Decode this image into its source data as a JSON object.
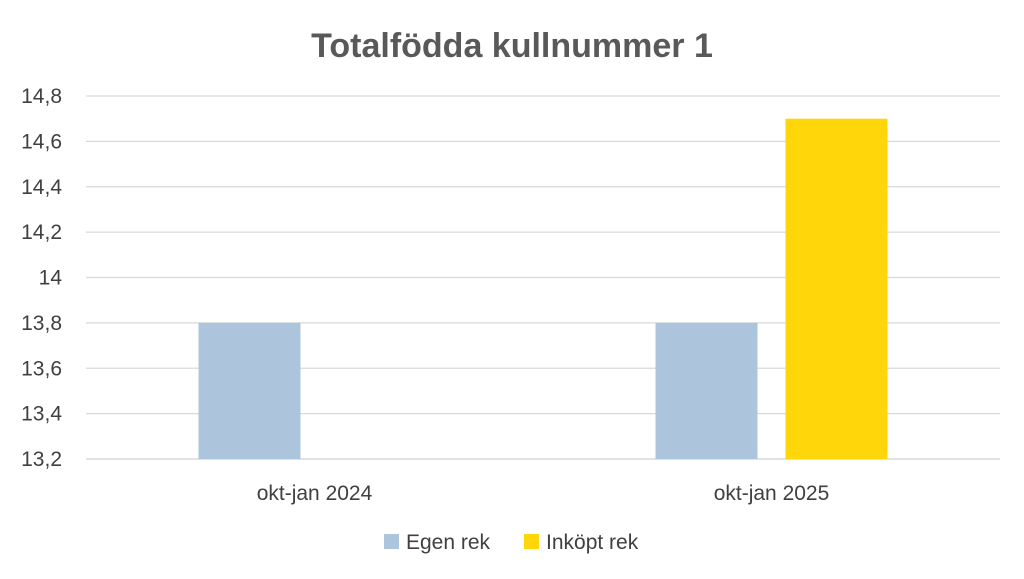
{
  "chart_data": {
    "type": "bar",
    "title": "Totalfödda kullnummer 1",
    "categories": [
      "okt-jan 2024",
      "okt-jan 2025"
    ],
    "series": [
      {
        "name": "Egen rek",
        "values": [
          13.8,
          13.8
        ],
        "color": "#adc4dd"
      },
      {
        "name": "Inköpt rek",
        "values": [
          null,
          14.7
        ],
        "color": "#ffd60a"
      }
    ],
    "ylim": [
      13.2,
      14.8
    ],
    "yticks": [
      "13,2",
      "13,4",
      "13,6",
      "13,8",
      "14",
      "14,2",
      "14,4",
      "14,6",
      "14,8"
    ],
    "grid": true,
    "legend_position": "bottom"
  }
}
